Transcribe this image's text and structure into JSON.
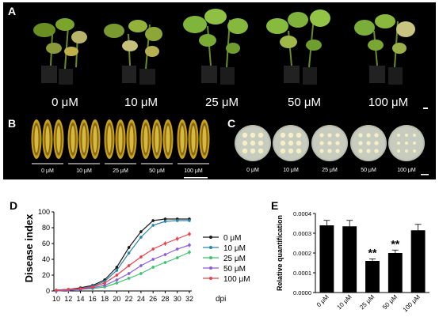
{
  "panels": {
    "a": {
      "letter": "A",
      "labels": [
        "0 μM",
        "10 μM",
        "25 μM",
        "50 μM",
        "100 μM"
      ]
    },
    "b": {
      "letter": "B",
      "labels": [
        "0 μM",
        "10 μM",
        "25 μM",
        "50 μM",
        "100 μM"
      ]
    },
    "c": {
      "letter": "C",
      "labels": [
        "0 μM",
        "10 μM",
        "25 μM",
        "50 μM",
        "100 μM"
      ]
    },
    "d": {
      "letter": "D"
    },
    "e": {
      "letter": "E"
    }
  },
  "colors": {
    "s0": "#1a1a1a",
    "s10": "#2a86a6",
    "s25": "#3cc26e",
    "s50": "#8c5cd6",
    "s100": "#e8404a",
    "bar": "#000000",
    "plant_bg": "#000000"
  },
  "chart_data": [
    {
      "type": "line",
      "ylabel": "Disease index",
      "xlabel": "dpi",
      "x": [
        10,
        12,
        14,
        16,
        18,
        20,
        22,
        24,
        26,
        28,
        30,
        32
      ],
      "xticks": [
        "10",
        "12",
        "14",
        "16",
        "18",
        "20",
        "22",
        "24",
        "26",
        "28",
        "30",
        "32"
      ],
      "yticks": [
        "0",
        "20",
        "40",
        "60",
        "80",
        "100"
      ],
      "ylim": [
        0,
        100
      ],
      "legend_position": "right",
      "grid": false,
      "series": [
        {
          "name": "0 μM",
          "color_key": "s0",
          "values": [
            1,
            2,
            4,
            7,
            14,
            30,
            55,
            75,
            89,
            91,
            91,
            91
          ]
        },
        {
          "name": "10 μM",
          "color_key": "s10",
          "values": [
            1,
            2,
            3,
            6,
            12,
            26,
            48,
            68,
            83,
            88,
            89,
            89
          ]
        },
        {
          "name": "25 μM",
          "color_key": "s25",
          "values": [
            0,
            1,
            2,
            3,
            5,
            10,
            16,
            22,
            30,
            36,
            42,
            49
          ]
        },
        {
          "name": "50 μM",
          "color_key": "s50",
          "values": [
            0,
            1,
            2,
            4,
            7,
            14,
            22,
            32,
            40,
            46,
            53,
            58
          ]
        },
        {
          "name": "100 μM",
          "color_key": "s100",
          "values": [
            1,
            2,
            3,
            5,
            10,
            20,
            32,
            43,
            53,
            60,
            66,
            72
          ]
        }
      ],
      "errors": [
        [
          1,
          1,
          1,
          1,
          2,
          2,
          2,
          2,
          2,
          2,
          2,
          2
        ],
        [
          1,
          1,
          1,
          1,
          2,
          2,
          2,
          2,
          2,
          2,
          2,
          2
        ],
        [
          1,
          1,
          1,
          1,
          1,
          2,
          2,
          2,
          2,
          2,
          2,
          3
        ],
        [
          1,
          1,
          1,
          1,
          1,
          2,
          2,
          2,
          2,
          2,
          2,
          3
        ],
        [
          1,
          1,
          1,
          1,
          2,
          2,
          2,
          2,
          2,
          3,
          3,
          3
        ]
      ]
    },
    {
      "type": "bar",
      "ylabel": "Relative quantification",
      "categories": [
        "0 μM",
        "10 μM",
        "25 μM",
        "50 μM",
        "100 μM"
      ],
      "values": [
        0.00034,
        0.000335,
        0.00016,
        0.0002,
        0.000315
      ],
      "errors": [
        2.5e-05,
        3e-05,
        1e-05,
        1.5e-05,
        3e-05
      ],
      "annotations": [
        "",
        "",
        "**",
        "**",
        ""
      ],
      "yticks": [
        "0.0000",
        "0.0001",
        "0.0002",
        "0.0003",
        "0.0004"
      ],
      "ylim": [
        0,
        0.0004
      ],
      "grid": false
    }
  ]
}
